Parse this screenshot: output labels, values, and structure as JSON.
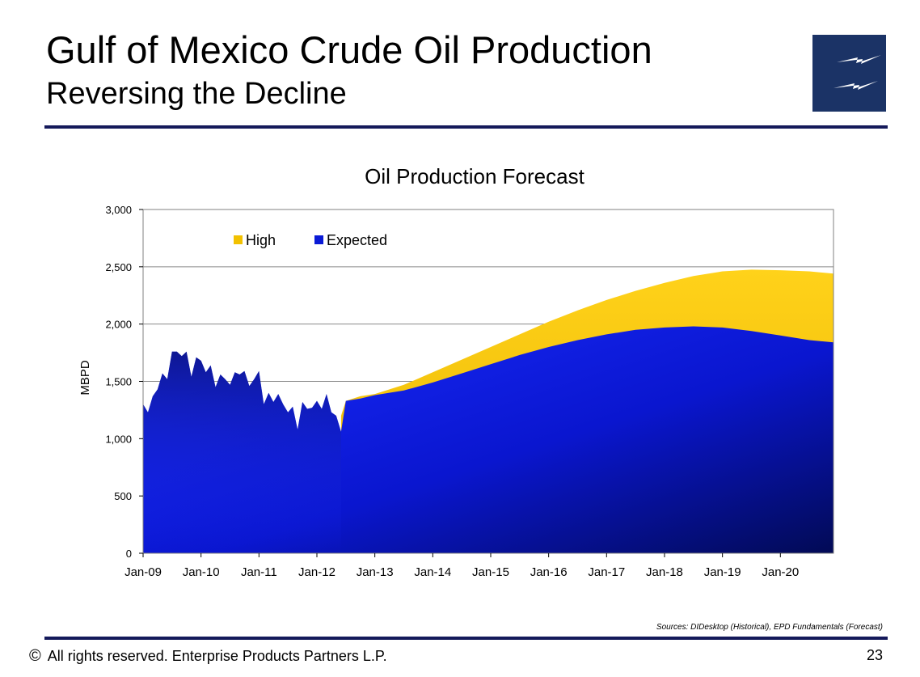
{
  "slide": {
    "title": "Gulf of Mexico Crude Oil Production",
    "subtitle": "Reversing the Decline",
    "sources": "Sources:  DIDesktop (Historical), EPD Fundamentals (Forecast)",
    "copyright_symbol": "©",
    "footer_text": "All rights reserved. Enterprise Products Partners L.P.",
    "page_number": "23",
    "colors": {
      "rule": "#14195a",
      "logo_bg": "#1b3366"
    }
  },
  "chart_data": {
    "type": "area",
    "title": "Oil Production Forecast",
    "xlabel": "",
    "ylabel": "MBPD",
    "ylim": [
      0,
      3000
    ],
    "yticks": [
      0,
      500,
      1000,
      1500,
      2000,
      2500,
      3000
    ],
    "ytick_labels": [
      "0",
      "500",
      "1,000",
      "1,500",
      "2,000",
      "2,500",
      "3,000"
    ],
    "xtick_labels": [
      "Jan-09",
      "Jan-10",
      "Jan-11",
      "Jan-12",
      "Jan-13",
      "Jan-14",
      "Jan-15",
      "Jan-16",
      "Jan-17",
      "Jan-18",
      "Jan-19",
      "Jan-20"
    ],
    "x_range": [
      "Jan-09",
      "Dec-20"
    ],
    "grid": "horizontal",
    "legend_position": "top-left",
    "series": [
      {
        "name": "High",
        "color": "#f5c400",
        "points": [
          [
            "Jun-12",
            1200
          ],
          [
            "Jul-12",
            1330
          ],
          [
            "Oct-12",
            1370
          ],
          [
            "Jan-13",
            1390
          ],
          [
            "Jul-13",
            1470
          ],
          [
            "Jan-14",
            1580
          ],
          [
            "Jul-14",
            1690
          ],
          [
            "Jan-15",
            1800
          ],
          [
            "Jul-15",
            1910
          ],
          [
            "Jan-16",
            2020
          ],
          [
            "Jul-16",
            2120
          ],
          [
            "Jan-17",
            2210
          ],
          [
            "Jul-17",
            2290
          ],
          [
            "Jan-18",
            2360
          ],
          [
            "Jul-18",
            2420
          ],
          [
            "Jan-19",
            2460
          ],
          [
            "Jul-19",
            2475
          ],
          [
            "Jan-20",
            2470
          ],
          [
            "Jul-20",
            2460
          ],
          [
            "Dec-20",
            2440
          ]
        ]
      },
      {
        "name": "Expected",
        "color": "#0a1ad6",
        "points": [
          [
            "Jan-09",
            1300
          ],
          [
            "Feb-09",
            1230
          ],
          [
            "Mar-09",
            1370
          ],
          [
            "Apr-09",
            1430
          ],
          [
            "May-09",
            1570
          ],
          [
            "Jun-09",
            1520
          ],
          [
            "Jul-09",
            1760
          ],
          [
            "Aug-09",
            1760
          ],
          [
            "Sep-09",
            1720
          ],
          [
            "Oct-09",
            1760
          ],
          [
            "Nov-09",
            1540
          ],
          [
            "Dec-09",
            1710
          ],
          [
            "Jan-10",
            1680
          ],
          [
            "Feb-10",
            1580
          ],
          [
            "Mar-10",
            1640
          ],
          [
            "Apr-10",
            1450
          ],
          [
            "May-10",
            1560
          ],
          [
            "Jun-10",
            1520
          ],
          [
            "Jul-10",
            1470
          ],
          [
            "Aug-10",
            1580
          ],
          [
            "Sep-10",
            1560
          ],
          [
            "Oct-10",
            1590
          ],
          [
            "Nov-10",
            1460
          ],
          [
            "Dec-10",
            1520
          ],
          [
            "Jan-11",
            1590
          ],
          [
            "Feb-11",
            1300
          ],
          [
            "Mar-11",
            1400
          ],
          [
            "Apr-11",
            1320
          ],
          [
            "May-11",
            1390
          ],
          [
            "Jun-11",
            1300
          ],
          [
            "Jul-11",
            1230
          ],
          [
            "Aug-11",
            1280
          ],
          [
            "Sep-11",
            1080
          ],
          [
            "Oct-11",
            1320
          ],
          [
            "Nov-11",
            1260
          ],
          [
            "Dec-11",
            1270
          ],
          [
            "Jan-12",
            1330
          ],
          [
            "Feb-12",
            1260
          ],
          [
            "Mar-12",
            1390
          ],
          [
            "Apr-12",
            1230
          ],
          [
            "May-12",
            1200
          ],
          [
            "Jun-12",
            1060
          ],
          [
            "Jul-12",
            1330
          ],
          [
            "Oct-12",
            1350
          ],
          [
            "Jan-13",
            1380
          ],
          [
            "Jul-13",
            1420
          ],
          [
            "Jan-14",
            1490
          ],
          [
            "Jul-14",
            1570
          ],
          [
            "Jan-15",
            1650
          ],
          [
            "Jul-15",
            1730
          ],
          [
            "Jan-16",
            1800
          ],
          [
            "Jul-16",
            1860
          ],
          [
            "Jan-17",
            1910
          ],
          [
            "Jul-17",
            1950
          ],
          [
            "Jan-18",
            1970
          ],
          [
            "Jul-18",
            1980
          ],
          [
            "Jan-19",
            1970
          ],
          [
            "Jul-19",
            1940
          ],
          [
            "Jan-20",
            1900
          ],
          [
            "Jul-20",
            1860
          ],
          [
            "Dec-20",
            1840
          ]
        ]
      }
    ]
  }
}
